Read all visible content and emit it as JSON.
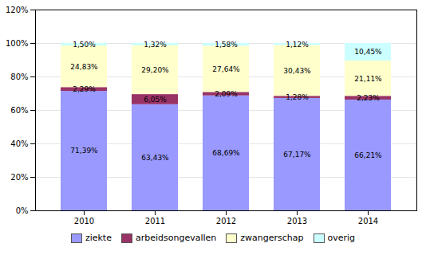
{
  "chart_data": {
    "type": "bar",
    "stacked": true,
    "categories": [
      "2010",
      "2011",
      "2012",
      "2013",
      "2014"
    ],
    "series": [
      {
        "name": "ziekte",
        "color": "#9999FF",
        "values": [
          71.39,
          63.43,
          68.69,
          67.17,
          66.21
        ],
        "value_labels": [
          "71,39%",
          "63,43%",
          "68,69%",
          "67,17%",
          "66,21%"
        ]
      },
      {
        "name": "arbeidsongevallen",
        "color": "#993366",
        "values": [
          2.29,
          6.05,
          2.09,
          1.28,
          2.23
        ],
        "value_labels": [
          "2,29%",
          "6,05%",
          "2,09%",
          "1,28%",
          "2,23%"
        ]
      },
      {
        "name": "zwangerschap",
        "color": "#FFFFCC",
        "values": [
          24.83,
          29.2,
          27.64,
          30.43,
          21.11
        ],
        "value_labels": [
          "24,83%",
          "29,20%",
          "27,64%",
          "30,43%",
          "21,11%"
        ]
      },
      {
        "name": "overig",
        "color": "#CCFFFF",
        "values": [
          1.5,
          1.32,
          1.58,
          1.12,
          10.45
        ],
        "value_labels": [
          "1,50%",
          "1,32%",
          "1,58%",
          "1,12%",
          "10,45%"
        ]
      }
    ],
    "ylim": [
      0,
      120
    ],
    "yticks": [
      {
        "value": 0,
        "label": "0%"
      },
      {
        "value": 20,
        "label": "20%"
      },
      {
        "value": 40,
        "label": "40%"
      },
      {
        "value": 60,
        "label": "60%"
      },
      {
        "value": 80,
        "label": "80%"
      },
      {
        "value": 100,
        "label": "100%"
      },
      {
        "value": 120,
        "label": "120%"
      }
    ],
    "grid": true,
    "data_labels": true,
    "legend": "bottom"
  }
}
